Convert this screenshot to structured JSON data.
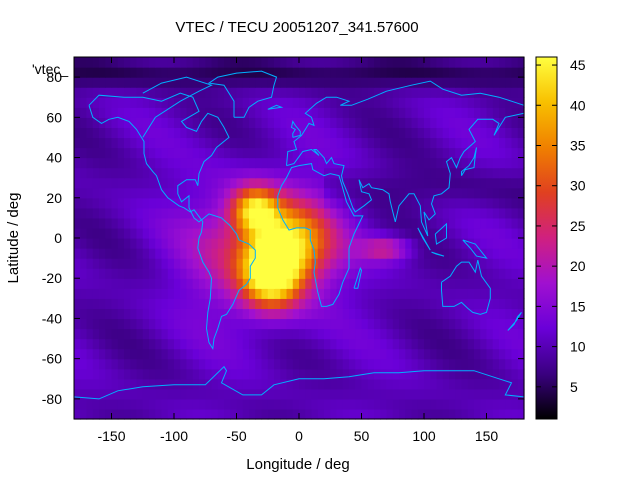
{
  "chart_data": {
    "type": "heatmap",
    "title": "VTEC / TECU 20051207_341.57600",
    "xlabel": "Longitude / deg",
    "ylabel": "Latitude / deg",
    "xlim": [
      -180,
      180
    ],
    "ylim": [
      -90,
      90
    ],
    "x_ticks": [
      -150,
      -100,
      -50,
      0,
      50,
      100,
      150
    ],
    "y_ticks": [
      -80,
      -60,
      -40,
      -20,
      0,
      20,
      40,
      60,
      80
    ],
    "colorbar": {
      "range": [
        1,
        46
      ],
      "ticks": [
        5,
        10,
        15,
        20,
        25,
        30,
        35,
        40,
        45
      ],
      "colors": [
        "#000000",
        "#3a0080",
        "#6a00d8",
        "#a010d0",
        "#d02080",
        "#e04020",
        "#f08000",
        "#f8c000",
        "#ffff40"
      ]
    },
    "legend_label": "'vtec_",
    "background_value": 10,
    "peaks": [
      {
        "lon": -22,
        "lat": -17,
        "value": 44,
        "sigma_lon": 22,
        "sigma_lat": 16
      },
      {
        "lon": -35,
        "lat": 14,
        "value": 36,
        "sigma_lon": 18,
        "sigma_lat": 11
      },
      {
        "lon": -5,
        "lat": -2,
        "value": 30,
        "sigma_lon": 30,
        "sigma_lat": 18
      },
      {
        "lon": -30,
        "lat": -5,
        "value": 26,
        "sigma_lon": 55,
        "sigma_lat": 32
      },
      {
        "lon": 70,
        "lat": -5,
        "value": 22,
        "sigma_lon": 20,
        "sigma_lat": 6
      }
    ]
  }
}
